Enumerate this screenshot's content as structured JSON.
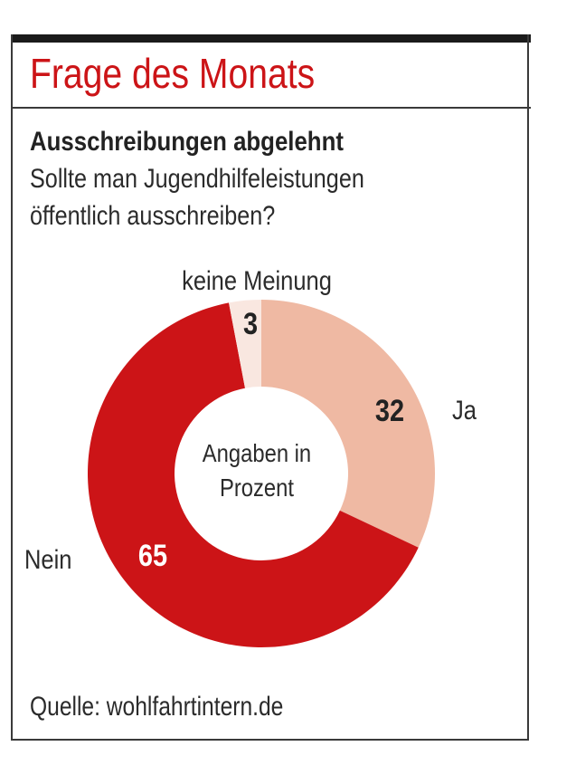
{
  "header": {
    "title": "Frage des Monats"
  },
  "question": {
    "headline": "Ausschreibungen abgelehnt",
    "line1": "Sollte man Jugendhilfeleistungen",
    "line2": "öffentlich ausschreiben?"
  },
  "footer": {
    "source": "Quelle: wohlfahrtintern.de"
  },
  "colors": {
    "accent_red": "#cc1417",
    "ja": "#efb9a3",
    "nein": "#cc1417",
    "keine_meinung": "#f9e7e0"
  },
  "chart_data": {
    "type": "pie",
    "variant": "donut",
    "title": "Frage des Monats",
    "subtitle": "Ausschreibungen abgelehnt",
    "center_label": [
      "Angaben in",
      "Prozent"
    ],
    "unit": "%",
    "start": "12 o'clock, clockwise",
    "slices": [
      {
        "label": "Ja",
        "value": 32,
        "color": "#efb9a3",
        "value_text_color": "#222222"
      },
      {
        "label": "Nein",
        "value": 65,
        "color": "#cc1417",
        "value_text_color": "#ffffff"
      },
      {
        "label": "keine Meinung",
        "value": 3,
        "color": "#f9e7e0",
        "value_text_color": "#222222"
      }
    ],
    "source": "Quelle: wohlfahrtintern.de"
  }
}
